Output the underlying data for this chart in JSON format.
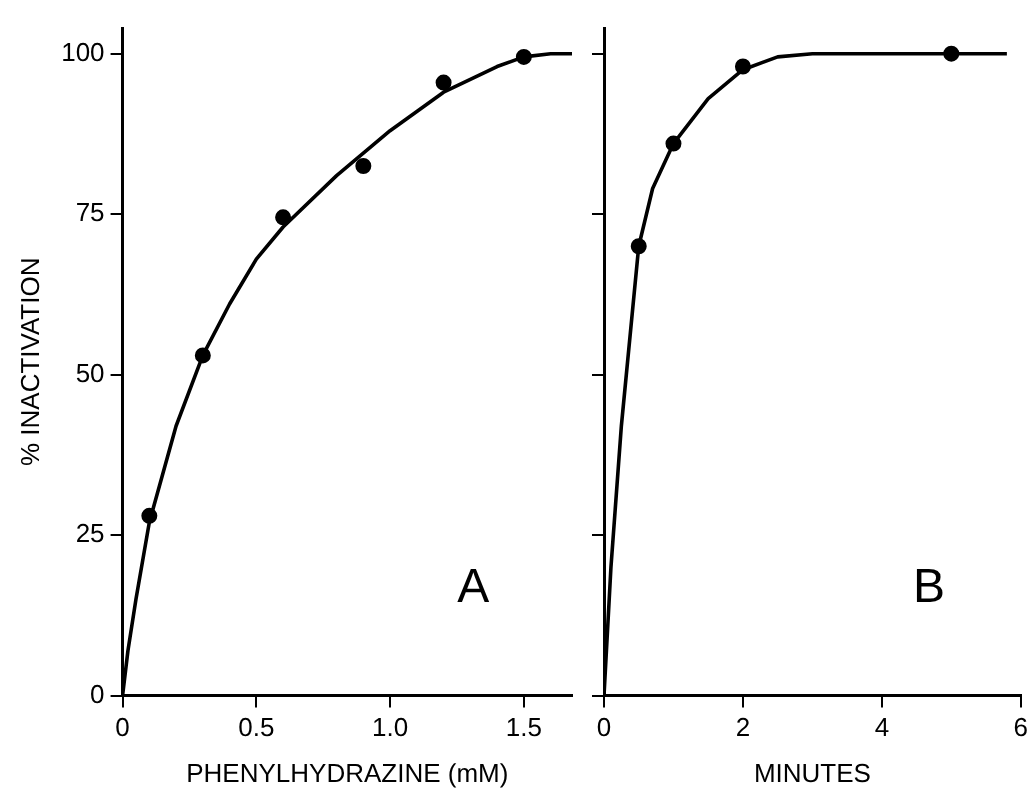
{
  "chart_data": [
    {
      "type": "scatter",
      "xlabel": "PHENYLHYDRAZINE (mM)",
      "ylabel": "% INACTIVATION",
      "xlim": [
        0,
        1.68
      ],
      "xticks": [
        0,
        0.5,
        {
          "value": 1,
          "label": "1.0"
        },
        1.5
      ],
      "ylim": [
        0,
        104
      ],
      "yticks": [
        0,
        25,
        50,
        75,
        100
      ],
      "grid": false,
      "annotations": [
        "A"
      ],
      "series": [
        {
          "color": "#000000",
          "marker": "circle",
          "x": [
            0.1,
            0.3,
            0.6,
            0.9,
            1.2,
            1.5
          ],
          "values": [
            28,
            53,
            74.5,
            82.5,
            95.5,
            99.5
          ]
        },
        {
          "type": "line",
          "color": "#000000",
          "marker": "none",
          "line_style": "solid",
          "x": [
            0,
            0.02,
            0.05,
            0.1,
            0.2,
            0.3,
            0.4,
            0.5,
            0.6,
            0.8,
            1.0,
            1.2,
            1.4,
            1.5,
            1.6,
            1.68
          ],
          "values": [
            0,
            7,
            15,
            27,
            42,
            53,
            61,
            68,
            73,
            81,
            88,
            94,
            98,
            99.5,
            100,
            100
          ]
        }
      ]
    },
    {
      "type": "scatter",
      "xlabel": "MINUTES",
      "xlim": [
        0,
        6
      ],
      "xticks": [
        0,
        2,
        4,
        6
      ],
      "ylim": [
        0,
        104
      ],
      "yticks": [
        0,
        25,
        50,
        75,
        100
      ],
      "tick_labels": "x",
      "grid": false,
      "annotations": [
        "B"
      ],
      "series": [
        {
          "color": "#000000",
          "marker": "circle",
          "x": [
            0.5,
            1,
            2,
            5
          ],
          "values": [
            70,
            86,
            98,
            100
          ]
        },
        {
          "type": "line",
          "color": "#000000",
          "marker": "none",
          "line_style": "solid",
          "x": [
            0,
            0.1,
            0.25,
            0.5,
            0.7,
            1,
            1.5,
            2,
            2.5,
            3,
            4,
            5,
            5.8
          ],
          "values": [
            0,
            20,
            42,
            70,
            79,
            86,
            93,
            97.5,
            99.5,
            100,
            100,
            100,
            100
          ]
        }
      ]
    }
  ]
}
